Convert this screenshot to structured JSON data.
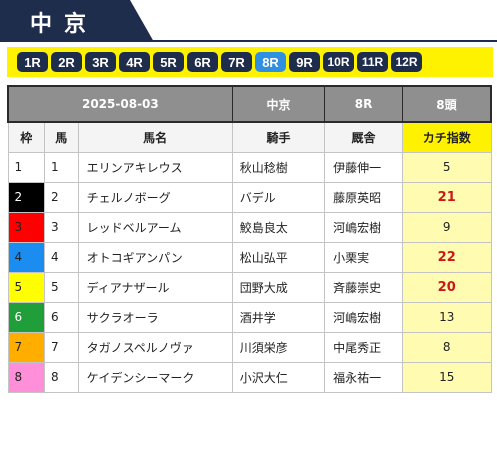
{
  "venue": {
    "title": "中京"
  },
  "races": [
    {
      "label": "1R",
      "active": false
    },
    {
      "label": "2R",
      "active": false
    },
    {
      "label": "3R",
      "active": false
    },
    {
      "label": "4R",
      "active": false
    },
    {
      "label": "5R",
      "active": false
    },
    {
      "label": "6R",
      "active": false
    },
    {
      "label": "7R",
      "active": false
    },
    {
      "label": "8R",
      "active": true
    },
    {
      "label": "9R",
      "active": false
    },
    {
      "label": "10R",
      "active": false
    },
    {
      "label": "11R",
      "active": false
    },
    {
      "label": "12R",
      "active": false
    }
  ],
  "info": {
    "date": "2025-08-03",
    "venue": "中京",
    "race": "8R",
    "field": "8頭"
  },
  "headers": {
    "waku": "枠",
    "uma": "馬",
    "name": "馬名",
    "jockey": "騎手",
    "trainer": "厩舎",
    "index": "カチ指数"
  },
  "waku_colors": {
    "1": "#ffffff",
    "2": "#000000",
    "3": "#ff0000",
    "4": "#1b8cf0",
    "5": "#ffff00",
    "6": "#1f9e3a",
    "7": "#ffae00",
    "8": "#ff8fd8"
  },
  "waku_text_colors": {
    "1": "#222222",
    "2": "#ffffff",
    "3": "#222222",
    "4": "#222222",
    "5": "#222222",
    "6": "#ffffff",
    "7": "#222222",
    "8": "#222222"
  },
  "highlight_color": "#cc1818",
  "horses": [
    {
      "waku": "1",
      "uma": "1",
      "name": "エリンアキレウス",
      "jockey": "秋山稔樹",
      "trainer": "伊藤伸一",
      "index": "5",
      "hot": false
    },
    {
      "waku": "2",
      "uma": "2",
      "name": "チェルノボーグ",
      "jockey": "バデル",
      "trainer": "藤原英昭",
      "index": "21",
      "hot": true
    },
    {
      "waku": "3",
      "uma": "3",
      "name": "レッドベルアーム",
      "jockey": "鮫島良太",
      "trainer": "河嶋宏樹",
      "index": "9",
      "hot": false
    },
    {
      "waku": "4",
      "uma": "4",
      "name": "オトコギアンパン",
      "jockey": "松山弘平",
      "trainer": "小栗実",
      "index": "22",
      "hot": true
    },
    {
      "waku": "5",
      "uma": "5",
      "name": "ディアナザール",
      "jockey": "団野大成",
      "trainer": "斉藤崇史",
      "index": "20",
      "hot": true
    },
    {
      "waku": "6",
      "uma": "6",
      "name": "サクラオーラ",
      "jockey": "酒井学",
      "trainer": "河嶋宏樹",
      "index": "13",
      "hot": false
    },
    {
      "waku": "7",
      "uma": "7",
      "name": "タガノスペルノヴァ",
      "jockey": "川須栄彦",
      "trainer": "中尾秀正",
      "index": "8",
      "hot": false
    },
    {
      "waku": "8",
      "uma": "8",
      "name": "ケイデンシーマーク",
      "jockey": "小沢大仁",
      "trainer": "福永祐一",
      "index": "15",
      "hot": false
    }
  ]
}
